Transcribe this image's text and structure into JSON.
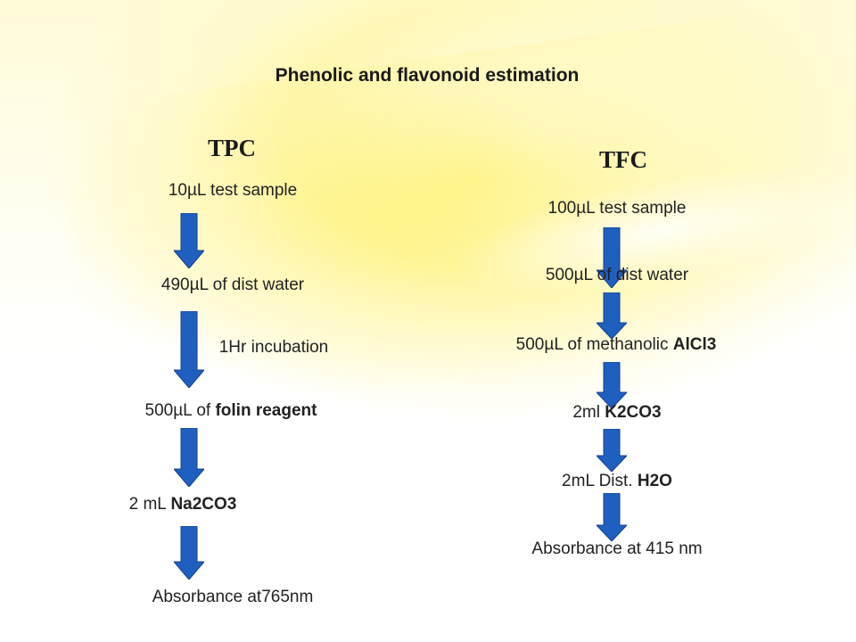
{
  "title": "Phenolic and flavonoid estimation",
  "tpc": {
    "heading": "TPC",
    "step1": "10µL test sample",
    "step2": "490µL  of dist water",
    "note": "1Hr incubation",
    "step3_prefix": "500µL of ",
    "step3_bold": "folin reagent",
    "step4_prefix": "2 mL ",
    "step4_bold": "Na2CO3",
    "step5": "Absorbance at765nm"
  },
  "tfc": {
    "heading": "TFC",
    "step1": "100µL test sample",
    "step2": "500µL  of dist water",
    "step3_prefix": "500µL of methanolic ",
    "step3_bold": "AlCl3",
    "step4_prefix": "2ml ",
    "step4_bold": "K2CO3",
    "step5_prefix": "2mL Dist. ",
    "step5_bold": "H2O",
    "step6": "Absorbance at 415 nm"
  },
  "colors": {
    "arrow_fill": "#1f5fbf",
    "arrow_stroke": "#17408a"
  }
}
